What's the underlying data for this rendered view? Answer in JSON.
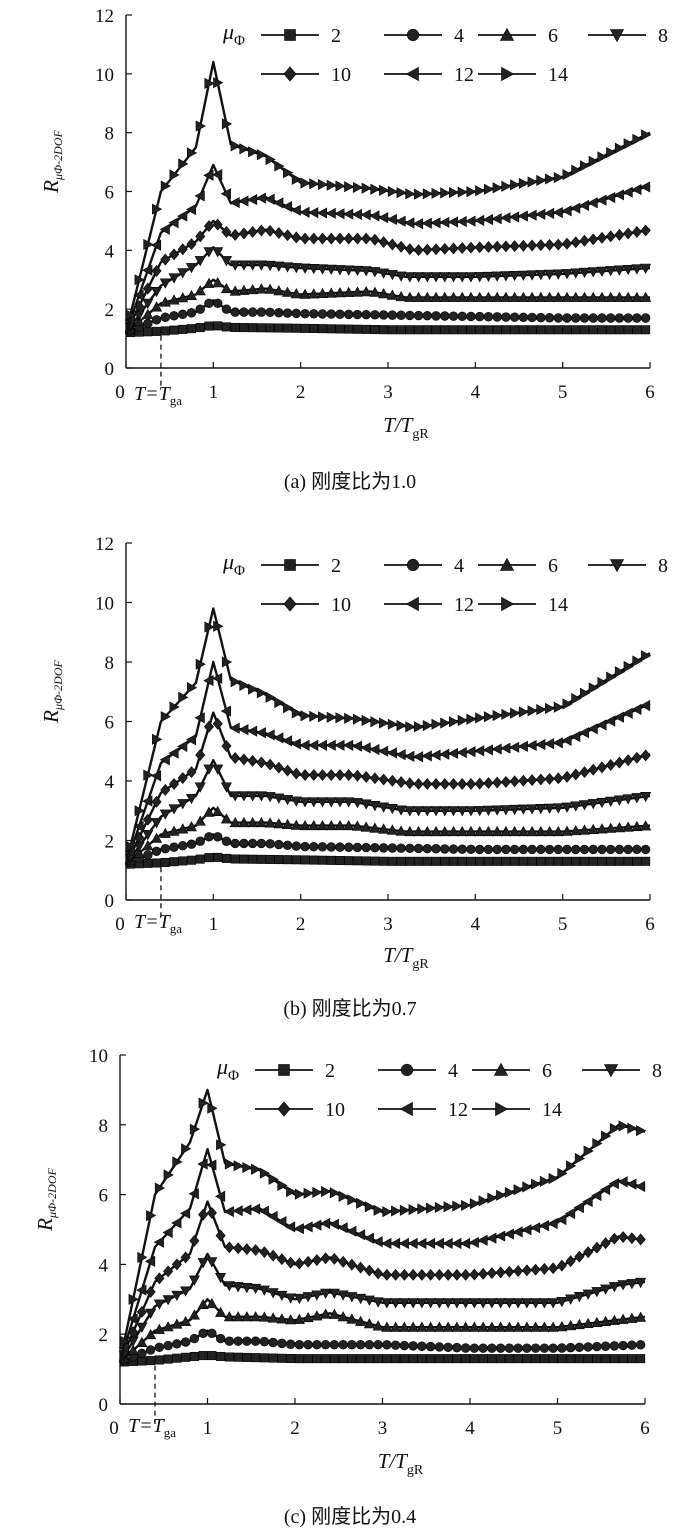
{
  "series_names": [
    "2",
    "4",
    "6",
    "8",
    "10",
    "12",
    "14"
  ],
  "legend_title": "μ",
  "legend_title_sub": "Φ",
  "ylabel": "R",
  "ylabel_sub": "μΦ-2DOF",
  "xlabel": "T/T",
  "xlabel_sub": "gR",
  "annotation": "T=T",
  "annotation_sub": "ga",
  "chart_data": [
    {
      "type": "line",
      "caption": "(a) 刚度比为1.0",
      "xlim": [
        0,
        6
      ],
      "ylim": [
        0,
        12
      ],
      "xticks": [
        "0",
        "1",
        "2",
        "3",
        "4",
        "5",
        "6"
      ],
      "yticks": [
        "0",
        "2",
        "4",
        "6",
        "8",
        "10",
        "12"
      ],
      "marker_line_x": 0.4,
      "series": [
        {
          "name": "2",
          "values": [
            [
              0,
              1.2
            ],
            [
              0.4,
              1.25
            ],
            [
              0.8,
              1.35
            ],
            [
              1.0,
              1.45
            ],
            [
              1.2,
              1.38
            ],
            [
              2,
              1.35
            ],
            [
              3,
              1.3
            ],
            [
              4,
              1.3
            ],
            [
              5,
              1.3
            ],
            [
              6,
              1.3
            ]
          ]
        },
        {
          "name": "4",
          "values": [
            [
              0,
              1.2
            ],
            [
              0.4,
              1.7
            ],
            [
              0.8,
              1.9
            ],
            [
              1.0,
              2.3
            ],
            [
              1.2,
              1.9
            ],
            [
              1.6,
              1.9
            ],
            [
              2,
              1.85
            ],
            [
              3,
              1.8
            ],
            [
              4,
              1.75
            ],
            [
              5,
              1.7
            ],
            [
              6,
              1.7
            ]
          ]
        },
        {
          "name": "6",
          "values": [
            [
              0,
              1.2
            ],
            [
              0.4,
              2.2
            ],
            [
              0.8,
              2.5
            ],
            [
              1.0,
              3.0
            ],
            [
              1.2,
              2.6
            ],
            [
              1.6,
              2.7
            ],
            [
              2,
              2.5
            ],
            [
              2.8,
              2.6
            ],
            [
              3.2,
              2.4
            ],
            [
              4,
              2.4
            ],
            [
              5,
              2.4
            ],
            [
              6,
              2.4
            ]
          ]
        },
        {
          "name": "8",
          "values": [
            [
              0,
              1.2
            ],
            [
              0.4,
              2.8
            ],
            [
              0.8,
              3.5
            ],
            [
              1.0,
              4.1
            ],
            [
              1.2,
              3.5
            ],
            [
              1.6,
              3.5
            ],
            [
              2,
              3.4
            ],
            [
              2.8,
              3.3
            ],
            [
              3.2,
              3.1
            ],
            [
              4,
              3.1
            ],
            [
              5,
              3.2
            ],
            [
              6,
              3.4
            ]
          ]
        },
        {
          "name": "10",
          "values": [
            [
              0,
              1.2
            ],
            [
              0.4,
              3.6
            ],
            [
              0.8,
              4.3
            ],
            [
              1.0,
              5.0
            ],
            [
              1.2,
              4.5
            ],
            [
              1.6,
              4.7
            ],
            [
              2,
              4.4
            ],
            [
              2.8,
              4.4
            ],
            [
              3.3,
              4.0
            ],
            [
              4,
              4.1
            ],
            [
              5,
              4.2
            ],
            [
              6,
              4.7
            ]
          ]
        },
        {
          "name": "12",
          "values": [
            [
              0,
              1.2
            ],
            [
              0.4,
              4.6
            ],
            [
              0.8,
              5.5
            ],
            [
              1.0,
              6.9
            ],
            [
              1.2,
              5.6
            ],
            [
              1.6,
              5.8
            ],
            [
              2,
              5.3
            ],
            [
              2.8,
              5.2
            ],
            [
              3.3,
              4.9
            ],
            [
              4,
              5.0
            ],
            [
              5,
              5.3
            ],
            [
              6,
              6.2
            ]
          ]
        },
        {
          "name": "14",
          "values": [
            [
              0,
              1.2
            ],
            [
              0.4,
              6.0
            ],
            [
              0.8,
              7.5
            ],
            [
              1.0,
              10.4
            ],
            [
              1.2,
              7.6
            ],
            [
              1.6,
              7.2
            ],
            [
              2,
              6.3
            ],
            [
              2.8,
              6.1
            ],
            [
              3.3,
              5.9
            ],
            [
              4,
              6.0
            ],
            [
              5,
              6.5
            ],
            [
              6,
              8.0
            ]
          ]
        }
      ]
    },
    {
      "type": "line",
      "caption": "(b) 刚度比为0.7",
      "xlim": [
        0,
        6
      ],
      "ylim": [
        0,
        12
      ],
      "xticks": [
        "0",
        "1",
        "2",
        "3",
        "4",
        "5",
        "6"
      ],
      "yticks": [
        "0",
        "2",
        "4",
        "6",
        "8",
        "10",
        "12"
      ],
      "marker_line_x": 0.4,
      "series": [
        {
          "name": "2",
          "values": [
            [
              0,
              1.2
            ],
            [
              0.4,
              1.25
            ],
            [
              0.8,
              1.35
            ],
            [
              1.0,
              1.45
            ],
            [
              1.2,
              1.38
            ],
            [
              2,
              1.35
            ],
            [
              3,
              1.3
            ],
            [
              4,
              1.3
            ],
            [
              5,
              1.3
            ],
            [
              6,
              1.3
            ]
          ]
        },
        {
          "name": "4",
          "values": [
            [
              0,
              1.2
            ],
            [
              0.4,
              1.7
            ],
            [
              0.8,
              1.9
            ],
            [
              1.0,
              2.2
            ],
            [
              1.2,
              1.9
            ],
            [
              1.6,
              1.9
            ],
            [
              2,
              1.8
            ],
            [
              3,
              1.75
            ],
            [
              4,
              1.7
            ],
            [
              5,
              1.7
            ],
            [
              6,
              1.7
            ]
          ]
        },
        {
          "name": "6",
          "values": [
            [
              0,
              1.2
            ],
            [
              0.4,
              2.2
            ],
            [
              0.8,
              2.5
            ],
            [
              1.0,
              3.1
            ],
            [
              1.2,
              2.6
            ],
            [
              1.6,
              2.6
            ],
            [
              2,
              2.5
            ],
            [
              2.6,
              2.5
            ],
            [
              3.2,
              2.3
            ],
            [
              4,
              2.3
            ],
            [
              5,
              2.3
            ],
            [
              6,
              2.5
            ]
          ]
        },
        {
          "name": "8",
          "values": [
            [
              0,
              1.2
            ],
            [
              0.4,
              2.8
            ],
            [
              0.8,
              3.5
            ],
            [
              1.0,
              4.7
            ],
            [
              1.2,
              3.5
            ],
            [
              1.6,
              3.5
            ],
            [
              2,
              3.3
            ],
            [
              2.6,
              3.3
            ],
            [
              3.2,
              3.0
            ],
            [
              4,
              3.0
            ],
            [
              5,
              3.1
            ],
            [
              6,
              3.5
            ]
          ]
        },
        {
          "name": "10",
          "values": [
            [
              0,
              1.2
            ],
            [
              0.4,
              3.6
            ],
            [
              0.8,
              4.4
            ],
            [
              1.0,
              6.3
            ],
            [
              1.2,
              4.8
            ],
            [
              1.6,
              4.6
            ],
            [
              2,
              4.2
            ],
            [
              2.6,
              4.2
            ],
            [
              3.3,
              3.9
            ],
            [
              4,
              3.9
            ],
            [
              5,
              4.1
            ],
            [
              6,
              4.9
            ]
          ]
        },
        {
          "name": "12",
          "values": [
            [
              0,
              1.2
            ],
            [
              0.4,
              4.6
            ],
            [
              0.8,
              5.5
            ],
            [
              1.0,
              8.0
            ],
            [
              1.2,
              5.8
            ],
            [
              1.6,
              5.6
            ],
            [
              2,
              5.2
            ],
            [
              2.6,
              5.2
            ],
            [
              3.3,
              4.8
            ],
            [
              4,
              5.0
            ],
            [
              5,
              5.3
            ],
            [
              6,
              6.6
            ]
          ]
        },
        {
          "name": "14",
          "values": [
            [
              0,
              1.2
            ],
            [
              0.4,
              6.0
            ],
            [
              0.8,
              7.3
            ],
            [
              1.0,
              9.8
            ],
            [
              1.2,
              7.4
            ],
            [
              1.6,
              6.9
            ],
            [
              2,
              6.2
            ],
            [
              2.6,
              6.1
            ],
            [
              3.3,
              5.8
            ],
            [
              4,
              6.1
            ],
            [
              5,
              6.5
            ],
            [
              6,
              8.3
            ]
          ]
        }
      ]
    },
    {
      "type": "line",
      "caption": "(c) 刚度比为0.4",
      "xlim": [
        0,
        6
      ],
      "ylim": [
        0,
        10
      ],
      "xticks": [
        "0",
        "1",
        "2",
        "3",
        "4",
        "5",
        "6"
      ],
      "yticks": [
        "0",
        "2",
        "4",
        "6",
        "8",
        "10"
      ],
      "marker_line_x": 0.4,
      "series": [
        {
          "name": "2",
          "values": [
            [
              0,
              1.2
            ],
            [
              0.4,
              1.25
            ],
            [
              0.8,
              1.35
            ],
            [
              1.0,
              1.4
            ],
            [
              1.2,
              1.35
            ],
            [
              2,
              1.3
            ],
            [
              3,
              1.3
            ],
            [
              4,
              1.3
            ],
            [
              5,
              1.3
            ],
            [
              6,
              1.3
            ]
          ]
        },
        {
          "name": "4",
          "values": [
            [
              0,
              1.2
            ],
            [
              0.4,
              1.6
            ],
            [
              0.8,
              1.8
            ],
            [
              1.0,
              2.1
            ],
            [
              1.2,
              1.8
            ],
            [
              1.6,
              1.8
            ],
            [
              2,
              1.7
            ],
            [
              3,
              1.7
            ],
            [
              4,
              1.6
            ],
            [
              5,
              1.6
            ],
            [
              6,
              1.7
            ]
          ]
        },
        {
          "name": "6",
          "values": [
            [
              0,
              1.2
            ],
            [
              0.4,
              2.1
            ],
            [
              0.8,
              2.4
            ],
            [
              1.0,
              3.0
            ],
            [
              1.2,
              2.5
            ],
            [
              1.6,
              2.5
            ],
            [
              2,
              2.4
            ],
            [
              2.4,
              2.6
            ],
            [
              3,
              2.2
            ],
            [
              4,
              2.2
            ],
            [
              5,
              2.2
            ],
            [
              6,
              2.5
            ]
          ]
        },
        {
          "name": "8",
          "values": [
            [
              0,
              1.2
            ],
            [
              0.4,
              2.8
            ],
            [
              0.8,
              3.3
            ],
            [
              1.0,
              4.3
            ],
            [
              1.2,
              3.4
            ],
            [
              1.6,
              3.3
            ],
            [
              2,
              3.0
            ],
            [
              2.4,
              3.2
            ],
            [
              3,
              2.9
            ],
            [
              4,
              2.9
            ],
            [
              5,
              2.9
            ],
            [
              5.7,
              3.4
            ],
            [
              6,
              3.5
            ]
          ]
        },
        {
          "name": "10",
          "values": [
            [
              0,
              1.2
            ],
            [
              0.4,
              3.5
            ],
            [
              0.8,
              4.3
            ],
            [
              1.0,
              5.8
            ],
            [
              1.2,
              4.5
            ],
            [
              1.6,
              4.4
            ],
            [
              2,
              4.0
            ],
            [
              2.4,
              4.2
            ],
            [
              3,
              3.7
            ],
            [
              4,
              3.7
            ],
            [
              5,
              3.9
            ],
            [
              5.7,
              4.8
            ],
            [
              6,
              4.7
            ]
          ]
        },
        {
          "name": "12",
          "values": [
            [
              0,
              1.2
            ],
            [
              0.4,
              4.5
            ],
            [
              0.8,
              5.6
            ],
            [
              1.0,
              7.3
            ],
            [
              1.2,
              5.5
            ],
            [
              1.6,
              5.6
            ],
            [
              2,
              5.0
            ],
            [
              2.4,
              5.2
            ],
            [
              3,
              4.6
            ],
            [
              4,
              4.6
            ],
            [
              5,
              5.2
            ],
            [
              5.7,
              6.4
            ],
            [
              6,
              6.2
            ]
          ]
        },
        {
          "name": "14",
          "values": [
            [
              0,
              1.2
            ],
            [
              0.4,
              6.0
            ],
            [
              0.8,
              7.5
            ],
            [
              1.0,
              9.0
            ],
            [
              1.2,
              6.9
            ],
            [
              1.6,
              6.7
            ],
            [
              2,
              6.0
            ],
            [
              2.4,
              6.1
            ],
            [
              3,
              5.5
            ],
            [
              4,
              5.7
            ],
            [
              5,
              6.5
            ],
            [
              5.7,
              8.0
            ],
            [
              6,
              7.8
            ]
          ]
        }
      ]
    }
  ]
}
